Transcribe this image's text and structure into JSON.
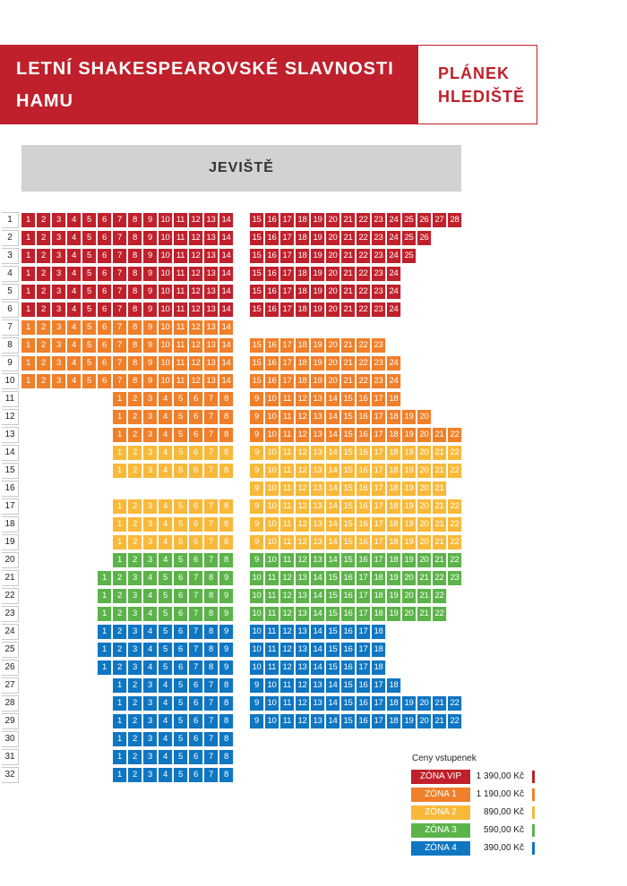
{
  "header": {
    "title_line1": "LETNÍ SHAKESPEAROVSKÉ SLAVNOSTI",
    "title_line2": "HAMU",
    "plan_line1": "PLÁNEK",
    "plan_line2": "HLEDIŠTĚ"
  },
  "stage_label": "JEVIŠTĚ",
  "zones": {
    "vip": "#c0202b",
    "z1": "#f07f2a",
    "z2": "#f8b93a",
    "z3": "#5cb34a",
    "z4": "#0f76c2"
  },
  "rows": [
    {
      "label": "1",
      "blocks": [
        {
          "from": 1,
          "to": 14,
          "zone": "vip"
        },
        {
          "from": 15,
          "to": 28,
          "zone": "vip"
        }
      ]
    },
    {
      "label": "2",
      "blocks": [
        {
          "from": 1,
          "to": 14,
          "zone": "vip"
        },
        {
          "from": 15,
          "to": 26,
          "zone": "vip"
        }
      ]
    },
    {
      "label": "3",
      "blocks": [
        {
          "from": 1,
          "to": 14,
          "zone": "vip"
        },
        {
          "from": 15,
          "to": 25,
          "zone": "vip"
        }
      ]
    },
    {
      "label": "4",
      "blocks": [
        {
          "from": 1,
          "to": 14,
          "zone": "vip"
        },
        {
          "from": 15,
          "to": 24,
          "zone": "vip"
        }
      ]
    },
    {
      "label": "5",
      "blocks": [
        {
          "from": 1,
          "to": 14,
          "zone": "vip"
        },
        {
          "from": 15,
          "to": 24,
          "zone": "vip"
        }
      ]
    },
    {
      "label": "6",
      "blocks": [
        {
          "from": 1,
          "to": 14,
          "zone": "vip"
        },
        {
          "from": 15,
          "to": 24,
          "zone": "vip"
        }
      ]
    },
    {
      "label": "7",
      "blocks": [
        {
          "from": 1,
          "to": 14,
          "zone": "z1"
        }
      ]
    },
    {
      "label": "8",
      "blocks": [
        {
          "from": 1,
          "to": 14,
          "zone": "z1"
        },
        {
          "from": 15,
          "to": 23,
          "zone": "z1"
        }
      ]
    },
    {
      "label": "9",
      "blocks": [
        {
          "from": 1,
          "to": 14,
          "zone": "z1"
        },
        {
          "from": 15,
          "to": 24,
          "zone": "z1"
        }
      ]
    },
    {
      "label": "10",
      "blocks": [
        {
          "from": 1,
          "to": 14,
          "zone": "z1"
        },
        {
          "from": 15,
          "to": 24,
          "zone": "z1"
        }
      ]
    },
    {
      "label": "11",
      "blocks": [
        {
          "from": 1,
          "to": 8,
          "zone": "z1"
        },
        {
          "from": 9,
          "to": 18,
          "zone": "z1"
        }
      ]
    },
    {
      "label": "12",
      "blocks": [
        {
          "from": 1,
          "to": 8,
          "zone": "z1"
        },
        {
          "from": 9,
          "to": 20,
          "zone": "z1"
        }
      ]
    },
    {
      "label": "13",
      "blocks": [
        {
          "from": 1,
          "to": 8,
          "zone": "z1"
        },
        {
          "from": 9,
          "to": 22,
          "zone": "z1"
        }
      ]
    },
    {
      "label": "14",
      "blocks": [
        {
          "from": 1,
          "to": 8,
          "zone": "z2"
        },
        {
          "from": 9,
          "to": 22,
          "zone": "z2"
        }
      ]
    },
    {
      "label": "15",
      "blocks": [
        {
          "from": 1,
          "to": 8,
          "zone": "z2"
        },
        {
          "from": 9,
          "to": 22,
          "zone": "z2"
        }
      ]
    },
    {
      "label": "16",
      "blocks": [
        {
          "from": 9,
          "to": 21,
          "zone": "z2"
        }
      ]
    },
    {
      "label": "17",
      "blocks": [
        {
          "from": 1,
          "to": 8,
          "zone": "z2"
        },
        {
          "from": 9,
          "to": 22,
          "zone": "z2"
        }
      ]
    },
    {
      "label": "18",
      "blocks": [
        {
          "from": 1,
          "to": 8,
          "zone": "z2"
        },
        {
          "from": 9,
          "to": 22,
          "zone": "z2"
        }
      ]
    },
    {
      "label": "19",
      "blocks": [
        {
          "from": 1,
          "to": 8,
          "zone": "z2"
        },
        {
          "from": 9,
          "to": 22,
          "zone": "z2"
        }
      ]
    },
    {
      "label": "20",
      "blocks": [
        {
          "from": 1,
          "to": 8,
          "zone": "z3"
        },
        {
          "from": 9,
          "to": 22,
          "zone": "z3"
        }
      ]
    },
    {
      "label": "21",
      "blocks": [
        {
          "from": 1,
          "to": 9,
          "zone": "z3"
        },
        {
          "from": 10,
          "to": 23,
          "zone": "z3"
        }
      ]
    },
    {
      "label": "22",
      "blocks": [
        {
          "from": 1,
          "to": 9,
          "zone": "z3"
        },
        {
          "from": 10,
          "to": 22,
          "zone": "z3"
        }
      ]
    },
    {
      "label": "23",
      "blocks": [
        {
          "from": 1,
          "to": 9,
          "zone": "z3"
        },
        {
          "from": 10,
          "to": 22,
          "zone": "z3"
        }
      ]
    },
    {
      "label": "24",
      "blocks": [
        {
          "from": 1,
          "to": 9,
          "zone": "z4"
        },
        {
          "from": 10,
          "to": 18,
          "zone": "z4"
        }
      ]
    },
    {
      "label": "25",
      "blocks": [
        {
          "from": 1,
          "to": 9,
          "zone": "z4"
        },
        {
          "from": 10,
          "to": 18,
          "zone": "z4"
        }
      ]
    },
    {
      "label": "26",
      "blocks": [
        {
          "from": 1,
          "to": 9,
          "zone": "z4"
        },
        {
          "from": 10,
          "to": 18,
          "zone": "z4"
        }
      ]
    },
    {
      "label": "27",
      "blocks": [
        {
          "from": 1,
          "to": 8,
          "zone": "z4"
        },
        {
          "from": 9,
          "to": 18,
          "zone": "z4"
        }
      ]
    },
    {
      "label": "28",
      "blocks": [
        {
          "from": 1,
          "to": 8,
          "zone": "z4"
        },
        {
          "from": 9,
          "to": 22,
          "zone": "z4"
        }
      ]
    },
    {
      "label": "29",
      "blocks": [
        {
          "from": 1,
          "to": 8,
          "zone": "z4"
        },
        {
          "from": 9,
          "to": 22,
          "zone": "z4"
        }
      ]
    },
    {
      "label": "30",
      "blocks": [
        {
          "from": 1,
          "to": 8,
          "zone": "z4"
        }
      ]
    },
    {
      "label": "31",
      "blocks": [
        {
          "from": 1,
          "to": 8,
          "zone": "z4"
        }
      ]
    },
    {
      "label": "32",
      "blocks": [
        {
          "from": 1,
          "to": 8,
          "zone": "z4"
        }
      ]
    }
  ],
  "legend": {
    "title": "Ceny vstupenek",
    "items": [
      {
        "label": "ZÓNA VIP",
        "price": "1 390,00 Kč",
        "zone": "vip"
      },
      {
        "label": "ZÓNA 1",
        "price": "1 190,00 Kč",
        "zone": "z1"
      },
      {
        "label": "ZÓNA 2",
        "price": "890,00 Kč",
        "zone": "z2"
      },
      {
        "label": "ZÓNA 3",
        "price": "590,00 Kč",
        "zone": "z3"
      },
      {
        "label": "ZÓNA 4",
        "price": "390,00 Kč",
        "zone": "z4"
      }
    ]
  }
}
